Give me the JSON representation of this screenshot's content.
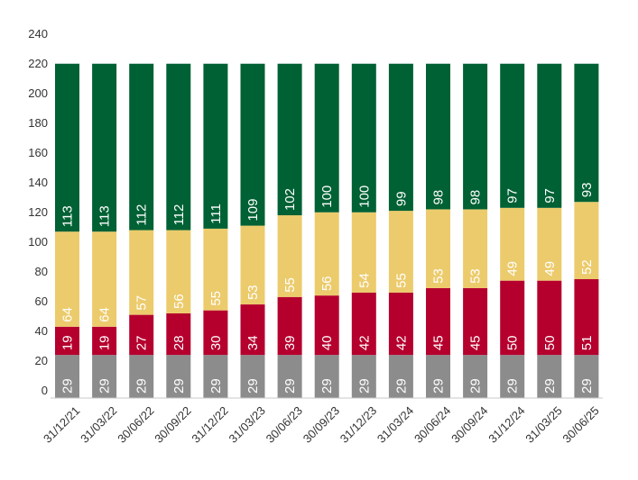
{
  "chart_data": {
    "type": "bar",
    "stacked": true,
    "categories": [
      "31/12/21",
      "31/03/22",
      "30/06/22",
      "30/09/22",
      "31/12/22",
      "31/03/23",
      "30/06/23",
      "30/09/23",
      "31/12/23",
      "31/03/24",
      "30/06/24",
      "30/09/24",
      "31/12/24",
      "31/03/25",
      "30/06/25"
    ],
    "series": [
      {
        "values": [
          29,
          29,
          29,
          29,
          29,
          29,
          29,
          29,
          29,
          29,
          29,
          29,
          29,
          29,
          29
        ],
        "color": "#8c8c8c"
      },
      {
        "values": [
          19,
          19,
          27,
          28,
          30,
          34,
          39,
          40,
          42,
          42,
          45,
          45,
          50,
          50,
          51
        ],
        "color": "#b5002e"
      },
      {
        "values": [
          64,
          64,
          57,
          56,
          55,
          53,
          55,
          56,
          54,
          55,
          53,
          53,
          49,
          49,
          52
        ],
        "color": "#eccb6c"
      },
      {
        "values": [
          113,
          113,
          112,
          112,
          111,
          109,
          102,
          100,
          100,
          99,
          98,
          98,
          97,
          97,
          93
        ],
        "color": "#006134"
      }
    ],
    "y_ticks": [
      0,
      20,
      40,
      60,
      80,
      100,
      120,
      140,
      160,
      180,
      200,
      220,
      240
    ],
    "ylim": [
      0,
      240
    ],
    "grid": false,
    "legend": "none",
    "data_label_color": "#ffffff",
    "title": "",
    "xlabel": "",
    "ylabel": ""
  }
}
